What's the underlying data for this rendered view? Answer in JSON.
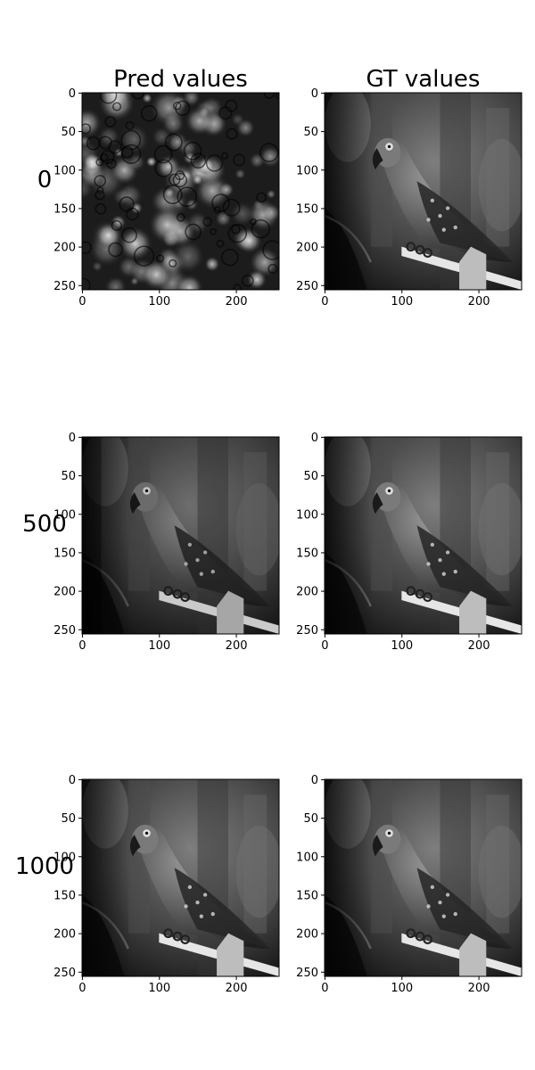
{
  "chart_data": {
    "type": "image_grid",
    "column_titles": [
      "Pred values",
      "GT values"
    ],
    "row_labels": [
      "0",
      "500",
      "1000"
    ],
    "colormap": "gray",
    "x_ticks": [
      0,
      100,
      200
    ],
    "y_ticks": [
      0,
      50,
      100,
      150,
      200,
      250
    ],
    "xlim": [
      -0.5,
      255.5
    ],
    "ylim": [
      255.5,
      -0.5
    ],
    "panels": [
      {
        "row": "0",
        "column": "Pred values",
        "content": "noise"
      },
      {
        "row": "0",
        "column": "GT values",
        "content": "parrot"
      },
      {
        "row": "500",
        "column": "Pred values",
        "content": "parrot"
      },
      {
        "row": "500",
        "column": "GT values",
        "content": "parrot"
      },
      {
        "row": "1000",
        "column": "Pred values",
        "content": "parrot"
      },
      {
        "row": "1000",
        "column": "GT values",
        "content": "parrot"
      }
    ]
  }
}
